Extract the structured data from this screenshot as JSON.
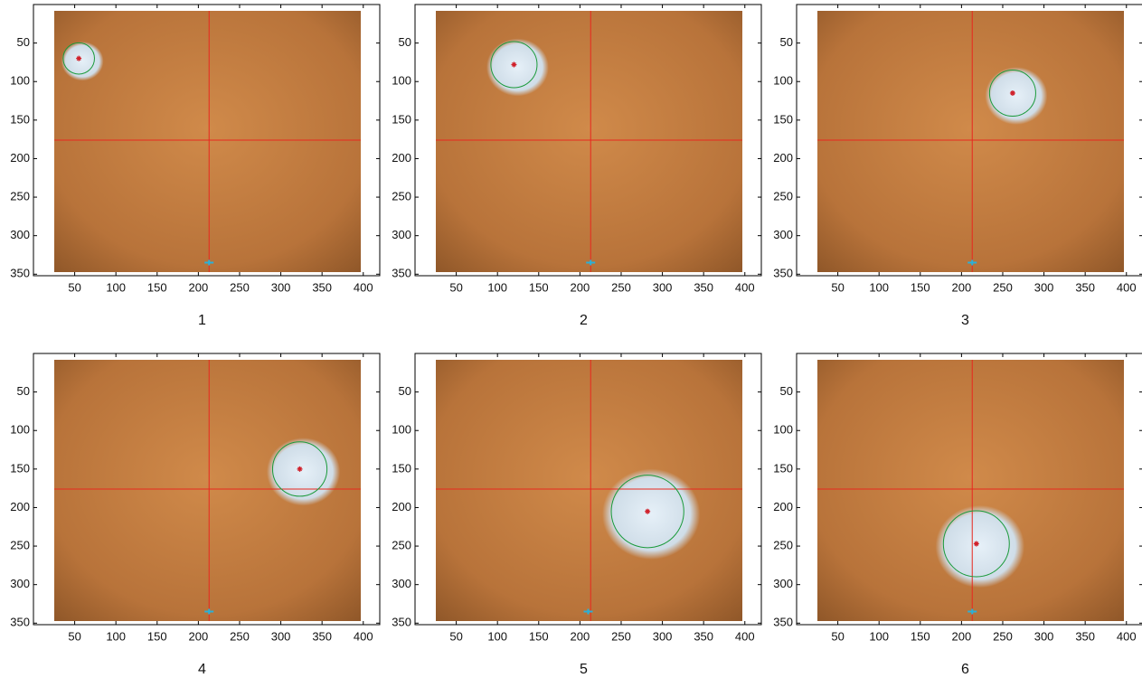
{
  "chart_data": [
    {
      "type": "image",
      "title": "1",
      "xlim": [
        0,
        420
      ],
      "ylim": [
        0,
        352
      ],
      "xticks": [
        50,
        100,
        150,
        200,
        250,
        300,
        350,
        400
      ],
      "yticks": [
        50,
        100,
        150,
        200,
        250,
        300,
        350
      ],
      "crosshair": {
        "x": 213,
        "y": 176,
        "color": "#e8281e"
      },
      "target": {
        "x": 55,
        "y": 70,
        "r": 19,
        "circle_color": "#1a9a3a",
        "center_color": "#d0202a"
      },
      "marker": {
        "x": 213,
        "y": 335,
        "color": "#2ab0d8"
      }
    },
    {
      "type": "image",
      "title": "2",
      "xlim": [
        0,
        420
      ],
      "ylim": [
        0,
        352
      ],
      "xticks": [
        50,
        100,
        150,
        200,
        250,
        300,
        350,
        400
      ],
      "yticks": [
        50,
        100,
        150,
        200,
        250,
        300,
        350
      ],
      "crosshair": {
        "x": 213,
        "y": 176,
        "color": "#e8281e"
      },
      "target": {
        "x": 120,
        "y": 78,
        "r": 28,
        "circle_color": "#1a9a3a",
        "center_color": "#d0202a"
      },
      "marker": {
        "x": 213,
        "y": 335,
        "color": "#2ab0d8"
      }
    },
    {
      "type": "image",
      "title": "3",
      "xlim": [
        0,
        420
      ],
      "ylim": [
        0,
        352
      ],
      "xticks": [
        50,
        100,
        150,
        200,
        250,
        300,
        350,
        400
      ],
      "yticks": [
        50,
        100,
        150,
        200,
        250,
        300,
        350
      ],
      "crosshair": {
        "x": 213,
        "y": 176,
        "color": "#e8281e"
      },
      "target": {
        "x": 262,
        "y": 115,
        "r": 28,
        "circle_color": "#1a9a3a",
        "center_color": "#d0202a"
      },
      "marker": {
        "x": 213,
        "y": 335,
        "color": "#2ab0d8"
      }
    },
    {
      "type": "image",
      "title": "4",
      "xlim": [
        0,
        420
      ],
      "ylim": [
        0,
        352
      ],
      "xticks": [
        50,
        100,
        150,
        200,
        250,
        300,
        350,
        400
      ],
      "yticks": [
        50,
        100,
        150,
        200,
        250,
        300,
        350
      ],
      "crosshair": {
        "x": 213,
        "y": 176,
        "color": "#e8281e"
      },
      "target": {
        "x": 323,
        "y": 150,
        "r": 33,
        "circle_color": "#1a9a3a",
        "center_color": "#d0202a"
      },
      "marker": {
        "x": 213,
        "y": 335,
        "color": "#2ab0d8"
      }
    },
    {
      "type": "image",
      "title": "5",
      "xlim": [
        0,
        420
      ],
      "ylim": [
        0,
        352
      ],
      "xticks": [
        50,
        100,
        150,
        200,
        250,
        300,
        350,
        400
      ],
      "yticks": [
        50,
        100,
        150,
        200,
        250,
        300,
        350
      ],
      "crosshair": {
        "x": 213,
        "y": 176,
        "color": "#e8281e"
      },
      "target": {
        "x": 282,
        "y": 205,
        "r": 44,
        "circle_color": "#1a9a3a",
        "center_color": "#d0202a"
      },
      "marker": {
        "x": 210,
        "y": 335,
        "color": "#2ab0d8"
      }
    },
    {
      "type": "image",
      "title": "6",
      "xlim": [
        0,
        420
      ],
      "ylim": [
        0,
        352
      ],
      "xticks": [
        50,
        100,
        150,
        200,
        250,
        300,
        350,
        400
      ],
      "yticks": [
        50,
        100,
        150,
        200,
        250,
        300,
        350
      ],
      "crosshair": {
        "x": 213,
        "y": 176,
        "color": "#e8281e"
      },
      "target": {
        "x": 218,
        "y": 247,
        "r": 40,
        "circle_color": "#1a9a3a",
        "center_color": "#d0202a"
      },
      "marker": {
        "x": 213,
        "y": 335,
        "color": "#2ab0d8"
      }
    }
  ]
}
